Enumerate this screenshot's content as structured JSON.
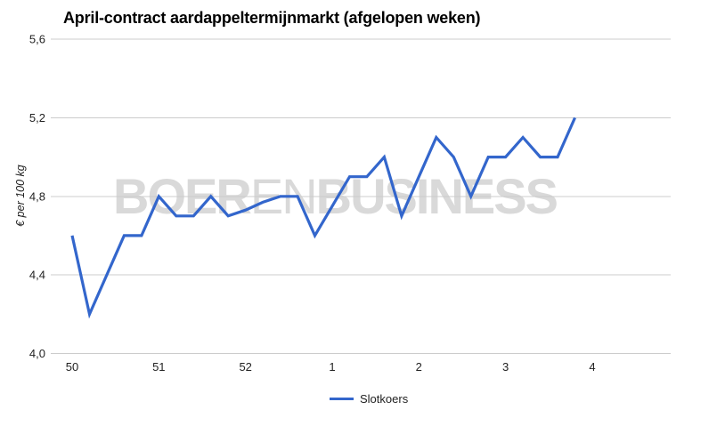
{
  "page": {
    "background": "#ffffff"
  },
  "watermark": {
    "bold_start": "BOER",
    "light_middle": "EN",
    "bold_end": "BUSINESS",
    "color": "#d9d9d9"
  },
  "legend": {
    "position": "bottom-center",
    "entries": [
      {
        "label": "Slotkoers",
        "color": "#3366cc"
      }
    ]
  },
  "chart_data": {
    "type": "line",
    "title": "April-contract aardappeltermijnmarkt (afgelopen weken)",
    "xlabel": "",
    "ylabel": "€ per 100 kg",
    "decimal_separator": ",",
    "grid": "horizontal-only",
    "x_axis": {
      "unit": "weeknummer",
      "tick_labels": [
        "50",
        "51",
        "52",
        "1",
        "2",
        "3",
        "4"
      ],
      "tick_positions": [
        0,
        1,
        2,
        3,
        4,
        5,
        6
      ],
      "range": [
        -0.25,
        6.9
      ]
    },
    "y_axis": {
      "tick_labels": [
        "4,0",
        "4,4",
        "4,8",
        "5,2",
        "5,6"
      ],
      "tick_values": [
        4.0,
        4.4,
        4.8,
        5.2,
        5.6
      ],
      "range": [
        4.0,
        5.6
      ]
    },
    "series": [
      {
        "name": "Slotkoers",
        "color": "#3366cc",
        "x_unit": "weeks after tick '50' (5 settlement points per week)",
        "points": [
          {
            "x": 0.0,
            "y": 4.6
          },
          {
            "x": 0.2,
            "y": 4.2
          },
          {
            "x": 0.4,
            "y": 4.4
          },
          {
            "x": 0.6,
            "y": 4.6
          },
          {
            "x": 0.8,
            "y": 4.6
          },
          {
            "x": 1.0,
            "y": 4.8
          },
          {
            "x": 1.2,
            "y": 4.7
          },
          {
            "x": 1.4,
            "y": 4.7
          },
          {
            "x": 1.6,
            "y": 4.8
          },
          {
            "x": 1.8,
            "y": 4.7
          },
          {
            "x": 2.0,
            "y": 4.73
          },
          {
            "x": 2.2,
            "y": 4.77
          },
          {
            "x": 2.4,
            "y": 4.8
          },
          {
            "x": 2.6,
            "y": 4.8
          },
          {
            "x": 2.8,
            "y": 4.6
          },
          {
            "x": 3.0,
            "y": 4.75
          },
          {
            "x": 3.2,
            "y": 4.9
          },
          {
            "x": 3.4,
            "y": 4.9
          },
          {
            "x": 3.6,
            "y": 5.0
          },
          {
            "x": 3.8,
            "y": 4.7
          },
          {
            "x": 4.0,
            "y": 4.9
          },
          {
            "x": 4.2,
            "y": 5.1
          },
          {
            "x": 4.4,
            "y": 5.0
          },
          {
            "x": 4.6,
            "y": 4.8
          },
          {
            "x": 4.8,
            "y": 5.0
          },
          {
            "x": 5.0,
            "y": 5.0
          },
          {
            "x": 5.2,
            "y": 5.1
          },
          {
            "x": 5.4,
            "y": 5.0
          },
          {
            "x": 5.6,
            "y": 5.0
          },
          {
            "x": 5.8,
            "y": 5.2
          }
        ]
      }
    ],
    "legend_position": "bottom-center"
  }
}
